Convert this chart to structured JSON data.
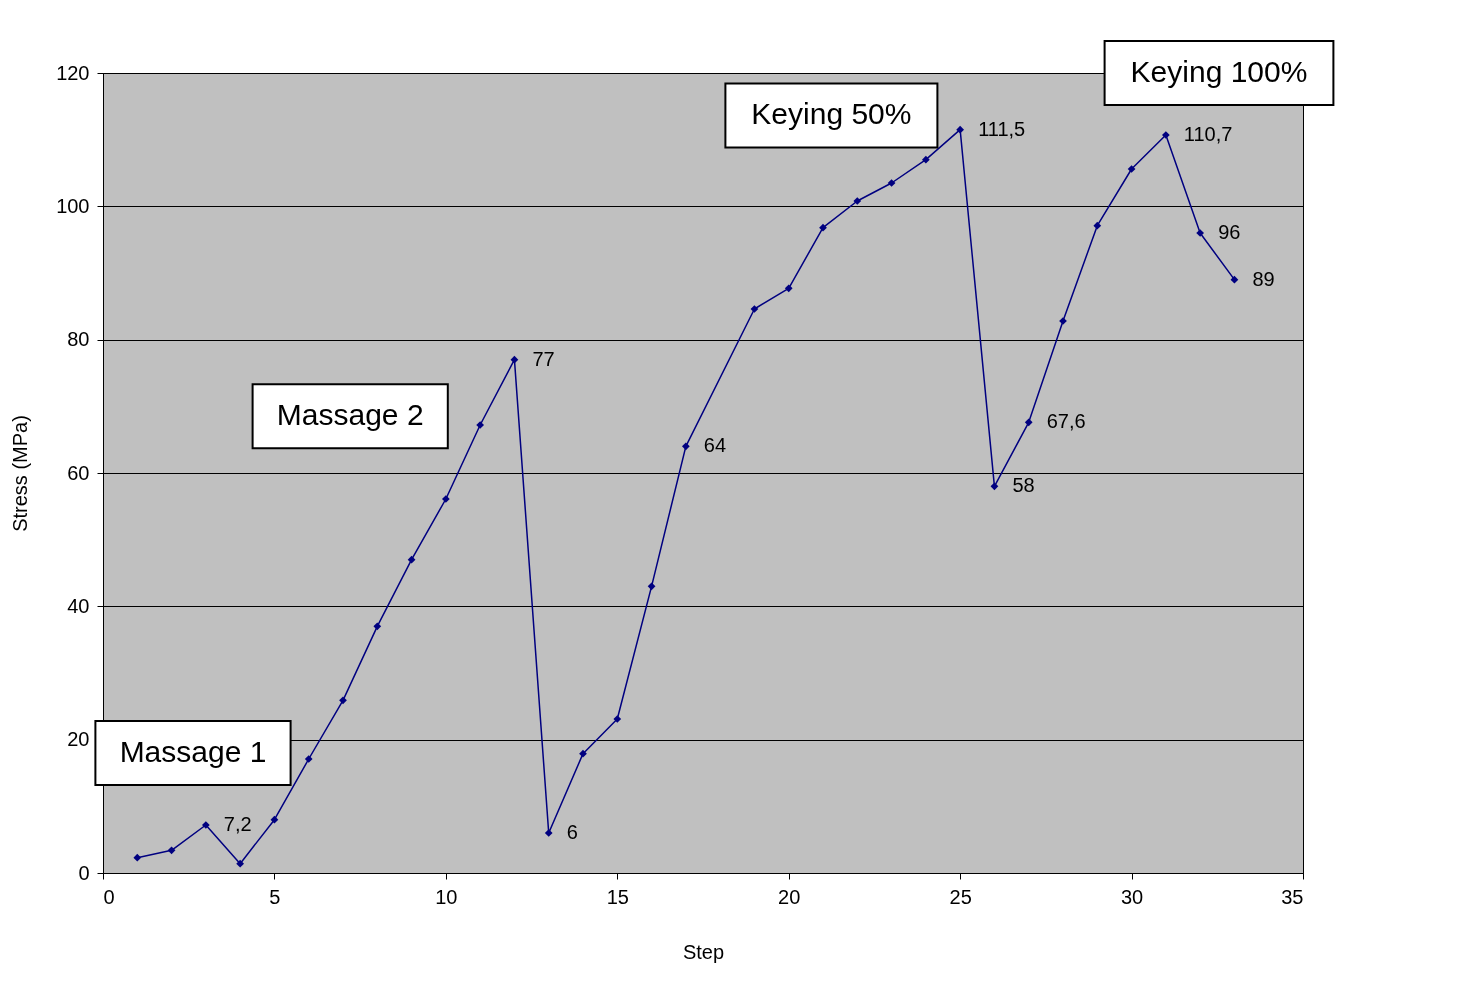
{
  "chart_data": {
    "type": "line",
    "xlabel": "Step",
    "ylabel": "Stress  (MPa)",
    "x": [
      1,
      2,
      3,
      4,
      5,
      6,
      7,
      8,
      9,
      10,
      11,
      12,
      13,
      14,
      15,
      16,
      17,
      19,
      20,
      21,
      22,
      23,
      24,
      25,
      26,
      27,
      28,
      29,
      30,
      31,
      32,
      33
    ],
    "series": [
      {
        "color": "#000080",
        "values": [
          2.3,
          3.4,
          7.2,
          1.4,
          8.0,
          17.1,
          25.9,
          37.0,
          47.0,
          56.1,
          67.2,
          77,
          6,
          17.9,
          23.1,
          43.0,
          64,
          84.6,
          87.7,
          96.8,
          100.8,
          103.5,
          107.0,
          111.5,
          58,
          67.6,
          82.8,
          97.1,
          105.6,
          110.7,
          96,
          89
        ],
        "value_labels": [
          null,
          null,
          "7,2",
          null,
          null,
          null,
          null,
          null,
          null,
          null,
          null,
          "77",
          "6",
          null,
          null,
          null,
          "64",
          null,
          null,
          null,
          null,
          null,
          null,
          "111,5",
          "58",
          "67,6",
          null,
          null,
          null,
          "110,7",
          "96",
          "89"
        ]
      }
    ],
    "xlim": [
      0,
      35
    ],
    "xticks": [
      0,
      5,
      10,
      15,
      20,
      25,
      30,
      35
    ],
    "ylim": [
      0,
      120
    ],
    "yticks": [
      0,
      20,
      40,
      60,
      80,
      100,
      120
    ],
    "grid": "y",
    "marker": "diamond",
    "line_style": "solid",
    "legend": false,
    "annotations": [
      "Massage 1",
      "Massage 2",
      "Keying 50%",
      "Keying 100%"
    ]
  }
}
